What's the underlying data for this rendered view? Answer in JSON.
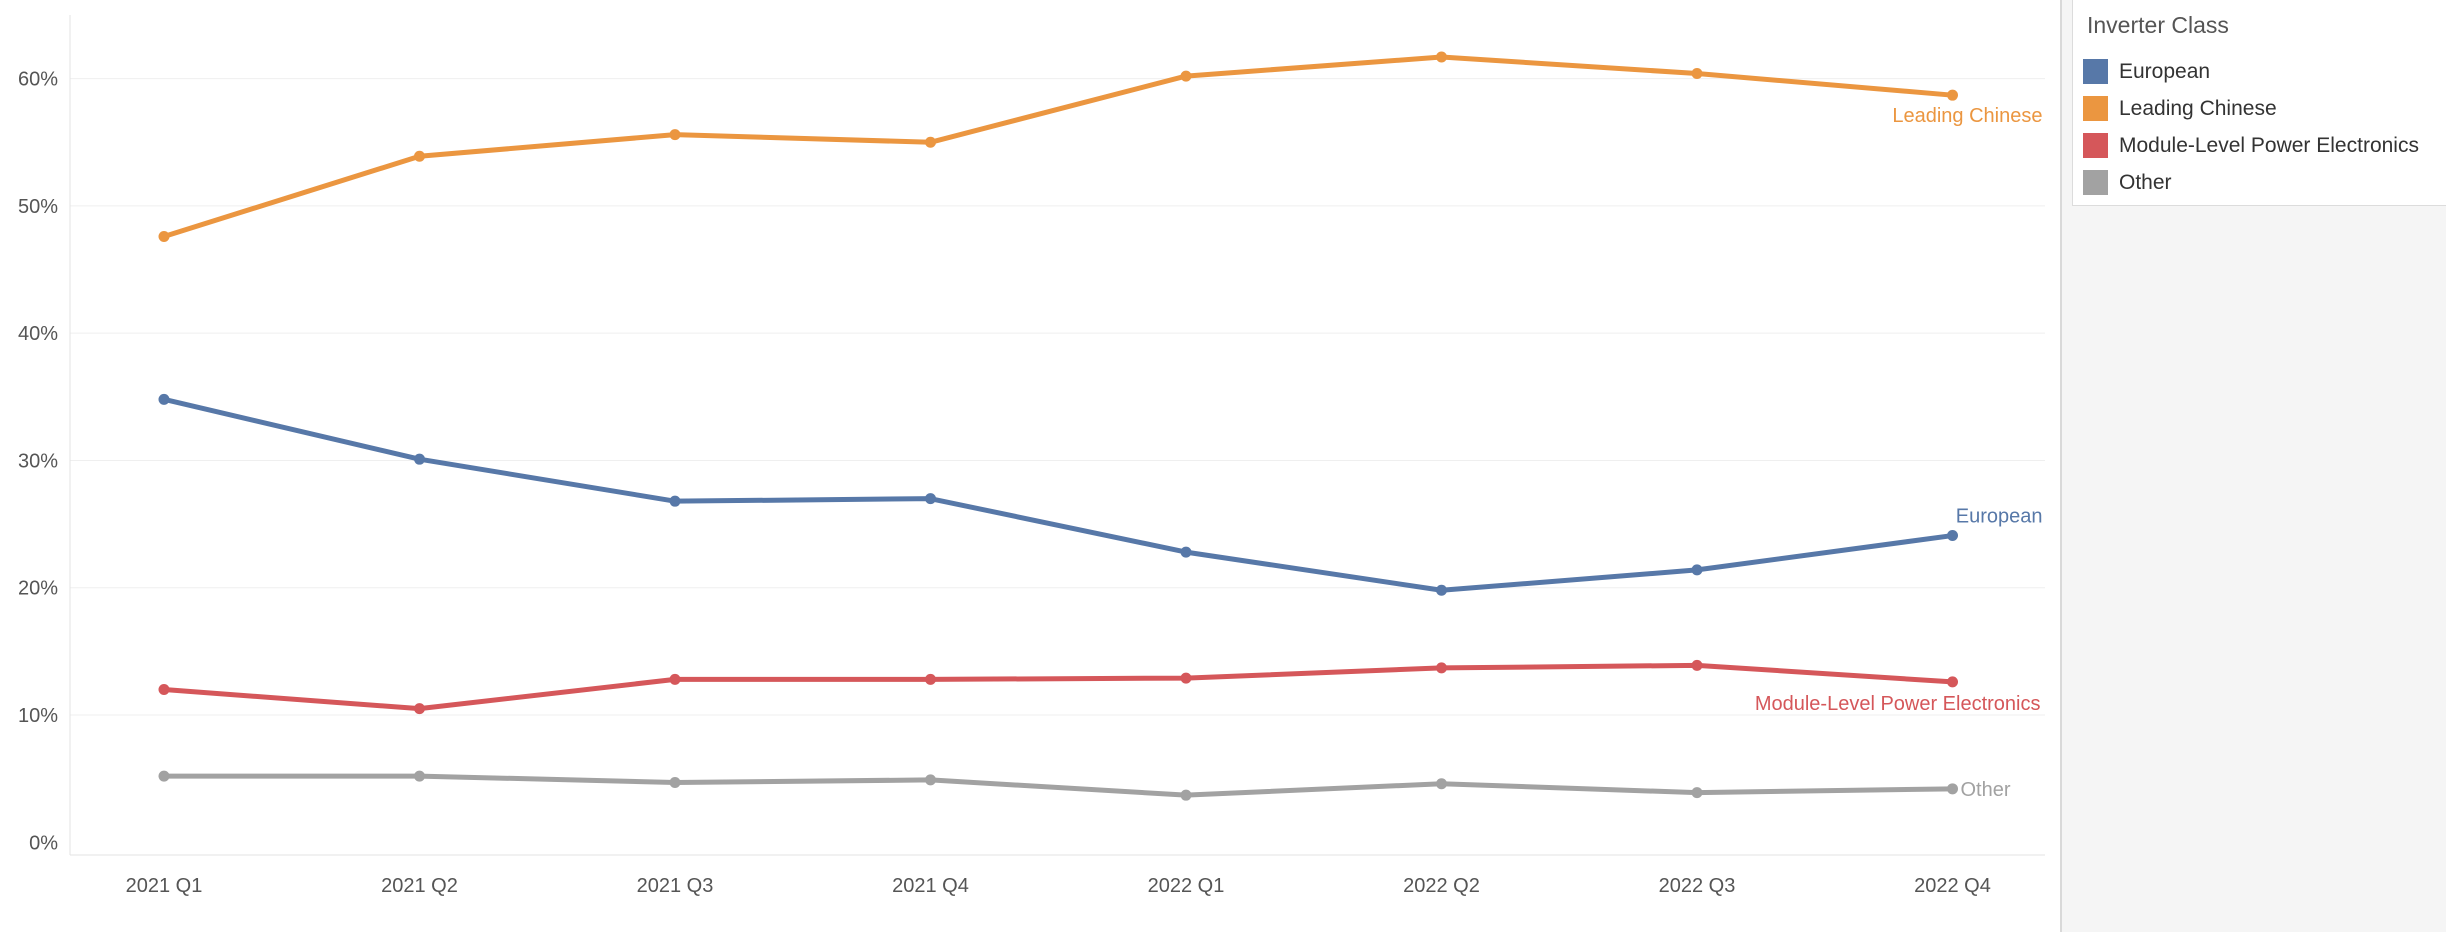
{
  "chart_data": {
    "type": "line",
    "categories": [
      "2021 Q1",
      "2021 Q2",
      "2021 Q3",
      "2021 Q4",
      "2022 Q1",
      "2022 Q2",
      "2022 Q3",
      "2022 Q4"
    ],
    "y_ticks": [
      {
        "value": 0,
        "label": "0%"
      },
      {
        "value": 10,
        "label": "10%"
      },
      {
        "value": 20,
        "label": "20%"
      },
      {
        "value": 30,
        "label": "30%"
      },
      {
        "value": 40,
        "label": "40%"
      },
      {
        "value": 50,
        "label": "50%"
      },
      {
        "value": 60,
        "label": "60%"
      }
    ],
    "ylim": [
      -1,
      65
    ],
    "grid": true,
    "series": [
      {
        "name": "European",
        "color": "#5778a8",
        "values": [
          34.8,
          30.1,
          26.8,
          27.0,
          22.8,
          19.8,
          21.4,
          24.1
        ]
      },
      {
        "name": "Leading Chinese",
        "color": "#eb9640",
        "values": [
          47.6,
          53.9,
          55.6,
          55.0,
          60.2,
          61.7,
          60.4,
          58.7
        ]
      },
      {
        "name": "Module-Level Power Electronics",
        "color": "#d5575a",
        "values": [
          12.0,
          10.5,
          12.8,
          12.8,
          12.9,
          13.7,
          13.9,
          12.6
        ]
      },
      {
        "name": "Other",
        "color": "#a2a2a2",
        "values": [
          5.2,
          5.2,
          4.7,
          4.9,
          3.7,
          4.6,
          3.9,
          4.2
        ]
      }
    ]
  },
  "legend": {
    "title": "Inverter Class",
    "items": [
      {
        "label": "European",
        "color": "#5778a8"
      },
      {
        "label": "Leading Chinese",
        "color": "#eb9640"
      },
      {
        "label": "Module-Level Power Electronics",
        "color": "#d5575a"
      },
      {
        "label": "Other",
        "color": "#a2a2a2"
      }
    ]
  }
}
